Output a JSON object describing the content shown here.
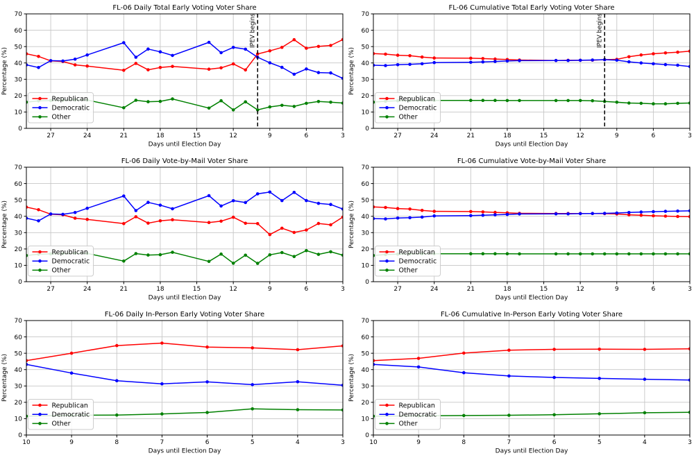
{
  "figure": {
    "background": "#ffffff",
    "grid_color": "#c6c6c6",
    "spine_color": "#000000",
    "vline_color": "#000000",
    "legend_border_color": "#cccccc",
    "colors": {
      "republican": "#ff0000",
      "democratic": "#0000ff",
      "other": "#008000"
    }
  },
  "chart_data": [
    {
      "id": "daily-total",
      "type": "line",
      "title": "FL-06 Daily Total Early Voting Voter Share",
      "xlabel": "Days until Election Day",
      "ylabel": "Percentage (%)",
      "xlim": [
        29,
        3
      ],
      "ylim": [
        0,
        70
      ],
      "xticks": [
        27,
        24,
        21,
        18,
        15,
        12,
        9,
        6,
        3
      ],
      "yticks": [
        0,
        10,
        20,
        30,
        40,
        50,
        60,
        70
      ],
      "grid": true,
      "legend_position": "lower-left",
      "vline": {
        "x": 10,
        "label": "IPEV begins"
      },
      "x": [
        29,
        28,
        27,
        26,
        25,
        24,
        21,
        20,
        19,
        18,
        17,
        14,
        13,
        12,
        11,
        10,
        9,
        8,
        7,
        6,
        5,
        4,
        3
      ],
      "series": [
        {
          "name": "Republican",
          "color": "#ff0000",
          "values": [
            45.6,
            44.0,
            41.3,
            40.9,
            38.8,
            38.1,
            35.5,
            39.7,
            35.8,
            37.2,
            37.9,
            36.2,
            37.0,
            39.4,
            35.7,
            45.5,
            47.4,
            49.5,
            54.2,
            49.0,
            50.1,
            50.7,
            54.3
          ]
        },
        {
          "name": "Democratic",
          "color": "#0000ff",
          "values": [
            38.8,
            37.2,
            41.4,
            41.2,
            42.3,
            44.9,
            52.4,
            43.5,
            48.5,
            46.8,
            44.6,
            52.6,
            46.3,
            49.5,
            48.4,
            43.5,
            40.1,
            37.3,
            33.1,
            36.3,
            34.1,
            33.9,
            30.6
          ]
        },
        {
          "name": "Other",
          "color": "#008000",
          "values": [
            16.0,
            16.8,
            17.0,
            17.2,
            17.4,
            17.3,
            12.6,
            17.2,
            16.3,
            16.5,
            18.0,
            12.4,
            16.9,
            11.3,
            16.2,
            11.3,
            13.1,
            14.1,
            13.4,
            15.3,
            16.4,
            16.0,
            15.5
          ]
        }
      ]
    },
    {
      "id": "cumulative-total",
      "type": "line",
      "title": "FL-06 Cumulative Total Early Voting Voter Share",
      "xlabel": "Days until Election Day",
      "ylabel": "Percentage (%)",
      "xlim": [
        29,
        3
      ],
      "ylim": [
        0,
        70
      ],
      "xticks": [
        27,
        24,
        21,
        18,
        15,
        12,
        9,
        6,
        3
      ],
      "yticks": [
        0,
        10,
        20,
        30,
        40,
        50,
        60,
        70
      ],
      "grid": true,
      "legend_position": "lower-left",
      "vline": {
        "x": 10,
        "label": "IPEV begins"
      },
      "x": [
        29,
        28,
        27,
        26,
        25,
        24,
        21,
        20,
        19,
        18,
        17,
        14,
        13,
        12,
        11,
        10,
        9,
        8,
        7,
        6,
        5,
        4,
        3
      ],
      "series": [
        {
          "name": "Republican",
          "color": "#ff0000",
          "values": [
            45.7,
            45.4,
            44.7,
            44.4,
            43.6,
            43.0,
            42.9,
            42.7,
            42.4,
            42.1,
            41.8,
            41.5,
            41.6,
            41.6,
            41.7,
            42.0,
            42.2,
            43.8,
            44.9,
            45.6,
            46.1,
            46.6,
            47.2
          ]
        },
        {
          "name": "Democratic",
          "color": "#0000ff",
          "values": [
            38.6,
            38.4,
            38.9,
            39.1,
            39.5,
            40.2,
            40.4,
            40.6,
            40.9,
            41.2,
            41.4,
            41.5,
            41.5,
            41.6,
            41.8,
            42.0,
            41.7,
            40.7,
            40.0,
            39.5,
            39.0,
            38.6,
            37.8
          ]
        },
        {
          "name": "Other",
          "color": "#008000",
          "values": [
            16.0,
            16.6,
            16.9,
            17.0,
            17.1,
            17.1,
            17.1,
            17.1,
            17.1,
            17.0,
            17.0,
            17.0,
            17.0,
            17.0,
            16.9,
            16.4,
            16.0,
            15.5,
            15.3,
            15.0,
            15.0,
            15.3,
            15.5
          ]
        }
      ]
    },
    {
      "id": "daily-vbm",
      "type": "line",
      "title": "FL-06 Daily Vote-by-Mail Voter Share",
      "xlabel": "Days until Election Day",
      "ylabel": "Percentage (%)",
      "xlim": [
        29,
        3
      ],
      "ylim": [
        0,
        70
      ],
      "xticks": [
        27,
        24,
        21,
        18,
        15,
        12,
        9,
        6,
        3
      ],
      "yticks": [
        0,
        10,
        20,
        30,
        40,
        50,
        60,
        70
      ],
      "grid": true,
      "legend_position": "lower-left",
      "vline": null,
      "x": [
        29,
        28,
        27,
        26,
        25,
        24,
        21,
        20,
        19,
        18,
        17,
        14,
        13,
        12,
        11,
        10,
        9,
        8,
        7,
        6,
        5,
        4,
        3
      ],
      "series": [
        {
          "name": "Republican",
          "color": "#ff0000",
          "values": [
            45.6,
            44.0,
            41.3,
            40.9,
            38.8,
            38.1,
            35.5,
            39.7,
            35.8,
            37.2,
            37.9,
            36.2,
            37.0,
            39.4,
            35.7,
            35.5,
            28.8,
            32.7,
            30.1,
            31.6,
            35.6,
            34.8,
            39.5
          ]
        },
        {
          "name": "Democratic",
          "color": "#0000ff",
          "values": [
            38.8,
            37.2,
            41.4,
            41.2,
            42.3,
            44.9,
            52.4,
            43.5,
            48.5,
            46.8,
            44.6,
            52.6,
            46.3,
            49.5,
            48.4,
            53.7,
            54.8,
            49.6,
            54.6,
            49.6,
            47.9,
            47.2,
            44.4
          ]
        },
        {
          "name": "Other",
          "color": "#008000",
          "values": [
            16.0,
            16.8,
            17.0,
            17.2,
            17.4,
            17.3,
            12.6,
            17.2,
            16.3,
            16.5,
            18.0,
            12.4,
            16.9,
            11.3,
            16.2,
            11.2,
            16.4,
            17.8,
            15.4,
            19.0,
            16.7,
            18.3,
            16.2
          ]
        }
      ]
    },
    {
      "id": "cumulative-vbm",
      "type": "line",
      "title": "FL-06 Cumulative Vote-by-Mail Voter Share",
      "xlabel": "Days until Election Day",
      "ylabel": "Percentage (%)",
      "xlim": [
        29,
        3
      ],
      "ylim": [
        0,
        70
      ],
      "xticks": [
        27,
        24,
        21,
        18,
        15,
        12,
        9,
        6,
        3
      ],
      "yticks": [
        0,
        10,
        20,
        30,
        40,
        50,
        60,
        70
      ],
      "grid": true,
      "legend_position": "lower-left",
      "vline": null,
      "x": [
        29,
        28,
        27,
        26,
        25,
        24,
        21,
        20,
        19,
        18,
        17,
        14,
        13,
        12,
        11,
        10,
        9,
        8,
        7,
        6,
        5,
        4,
        3
      ],
      "series": [
        {
          "name": "Republican",
          "color": "#ff0000",
          "values": [
            45.7,
            45.4,
            44.7,
            44.4,
            43.6,
            43.0,
            42.9,
            42.7,
            42.4,
            42.1,
            41.8,
            41.7,
            41.7,
            41.7,
            41.7,
            41.6,
            41.4,
            40.9,
            40.6,
            40.3,
            40.1,
            39.9,
            39.8
          ]
        },
        {
          "name": "Democratic",
          "color": "#0000ff",
          "values": [
            38.6,
            38.4,
            38.9,
            39.1,
            39.5,
            40.2,
            40.4,
            40.6,
            40.9,
            41.1,
            41.4,
            41.5,
            41.5,
            41.6,
            41.7,
            41.8,
            42.0,
            42.3,
            42.6,
            42.8,
            43.0,
            43.2,
            43.3
          ]
        },
        {
          "name": "Other",
          "color": "#008000",
          "values": [
            16.0,
            16.6,
            16.9,
            17.0,
            17.1,
            17.1,
            17.1,
            17.1,
            17.1,
            17.1,
            17.0,
            17.0,
            17.0,
            17.0,
            17.0,
            17.0,
            17.0,
            17.0,
            17.0,
            17.0,
            17.0,
            17.0,
            17.0
          ]
        }
      ]
    },
    {
      "id": "daily-ipev",
      "type": "line",
      "title": "FL-06 Daily In-Person Early Voting Voter Share",
      "xlabel": "Days until Election Day",
      "ylabel": "Percentage (%)",
      "xlim": [
        10,
        3
      ],
      "ylim": [
        0,
        70
      ],
      "xticks": [
        10,
        9,
        8,
        7,
        6,
        5,
        4,
        3
      ],
      "yticks": [
        0,
        10,
        20,
        30,
        40,
        50,
        60,
        70
      ],
      "grid": true,
      "legend_position": "lower-left",
      "vline": null,
      "x": [
        10,
        9,
        8,
        7,
        6,
        5,
        4,
        3
      ],
      "series": [
        {
          "name": "Republican",
          "color": "#ff0000",
          "values": [
            45.5,
            50.0,
            54.7,
            56.2,
            53.8,
            53.3,
            52.2,
            54.5
          ]
        },
        {
          "name": "Democratic",
          "color": "#0000ff",
          "values": [
            43.2,
            37.9,
            33.2,
            31.3,
            32.5,
            30.8,
            32.6,
            30.4
          ]
        },
        {
          "name": "Other",
          "color": "#008000",
          "values": [
            11.5,
            12.1,
            12.2,
            12.9,
            13.8,
            16.0,
            15.5,
            15.3
          ]
        }
      ]
    },
    {
      "id": "cumulative-ipev",
      "type": "line",
      "title": "FL-06 Cumulative In-Person Early Voting Voter Share",
      "xlabel": "Days until Election Day",
      "ylabel": "Percentage (%)",
      "xlim": [
        10,
        3
      ],
      "ylim": [
        0,
        70
      ],
      "xticks": [
        10,
        9,
        8,
        7,
        6,
        5,
        4,
        3
      ],
      "yticks": [
        0,
        10,
        20,
        30,
        40,
        50,
        60,
        70
      ],
      "grid": true,
      "legend_position": "lower-left",
      "vline": null,
      "x": [
        10,
        9,
        8,
        7,
        6,
        5,
        4,
        3
      ],
      "series": [
        {
          "name": "Republican",
          "color": "#ff0000",
          "values": [
            45.5,
            46.9,
            50.1,
            51.9,
            52.4,
            52.5,
            52.4,
            52.7
          ]
        },
        {
          "name": "Democratic",
          "color": "#0000ff",
          "values": [
            43.2,
            41.6,
            38.1,
            36.1,
            35.2,
            34.6,
            34.1,
            33.6
          ]
        },
        {
          "name": "Other",
          "color": "#008000",
          "values": [
            11.5,
            11.7,
            11.9,
            12.1,
            12.4,
            13.0,
            13.6,
            13.9
          ]
        }
      ]
    }
  ]
}
